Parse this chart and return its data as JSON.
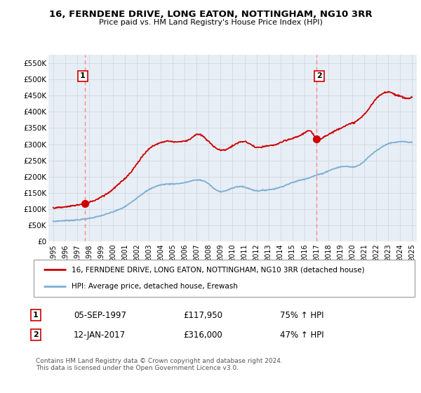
{
  "title": "16, FERNDENE DRIVE, LONG EATON, NOTTINGHAM, NG10 3RR",
  "subtitle": "Price paid vs. HM Land Registry's House Price Index (HPI)",
  "legend_line1": "16, FERNDENE DRIVE, LONG EATON, NOTTINGHAM, NG10 3RR (detached house)",
  "legend_line2": "HPI: Average price, detached house, Erewash",
  "note": "Contains HM Land Registry data © Crown copyright and database right 2024.\nThis data is licensed under the Open Government Licence v3.0.",
  "sale1_label": "1",
  "sale1_date": "05-SEP-1997",
  "sale1_price": "£117,950",
  "sale1_hpi": "75% ↑ HPI",
  "sale2_label": "2",
  "sale2_date": "12-JAN-2017",
  "sale2_price": "£316,000",
  "sale2_hpi": "47% ↑ HPI",
  "sale1_year": 1997.67,
  "sale1_value": 117950,
  "sale2_year": 2017.04,
  "sale2_value": 316000,
  "hpi_color": "#7bafd4",
  "price_color": "#cc0000",
  "vline_color": "#ff8888",
  "dot_color": "#cc0000",
  "background_color": "#ffffff",
  "grid_color": "#d0d8e4",
  "ylim": [
    0,
    575000
  ],
  "xlim_start": 1994.6,
  "xlim_end": 2025.4,
  "yticks": [
    0,
    50000,
    100000,
    150000,
    200000,
    250000,
    300000,
    350000,
    400000,
    450000,
    500000,
    550000
  ],
  "ytick_labels": [
    "£0",
    "£50K",
    "£100K",
    "£150K",
    "£200K",
    "£250K",
    "£300K",
    "£350K",
    "£400K",
    "£450K",
    "£500K",
    "£550K"
  ],
  "xtick_years": [
    1995,
    1996,
    1997,
    1998,
    1999,
    2000,
    2001,
    2002,
    2003,
    2004,
    2005,
    2006,
    2007,
    2008,
    2009,
    2010,
    2011,
    2012,
    2013,
    2014,
    2015,
    2016,
    2017,
    2018,
    2019,
    2020,
    2021,
    2022,
    2023,
    2024,
    2025
  ]
}
